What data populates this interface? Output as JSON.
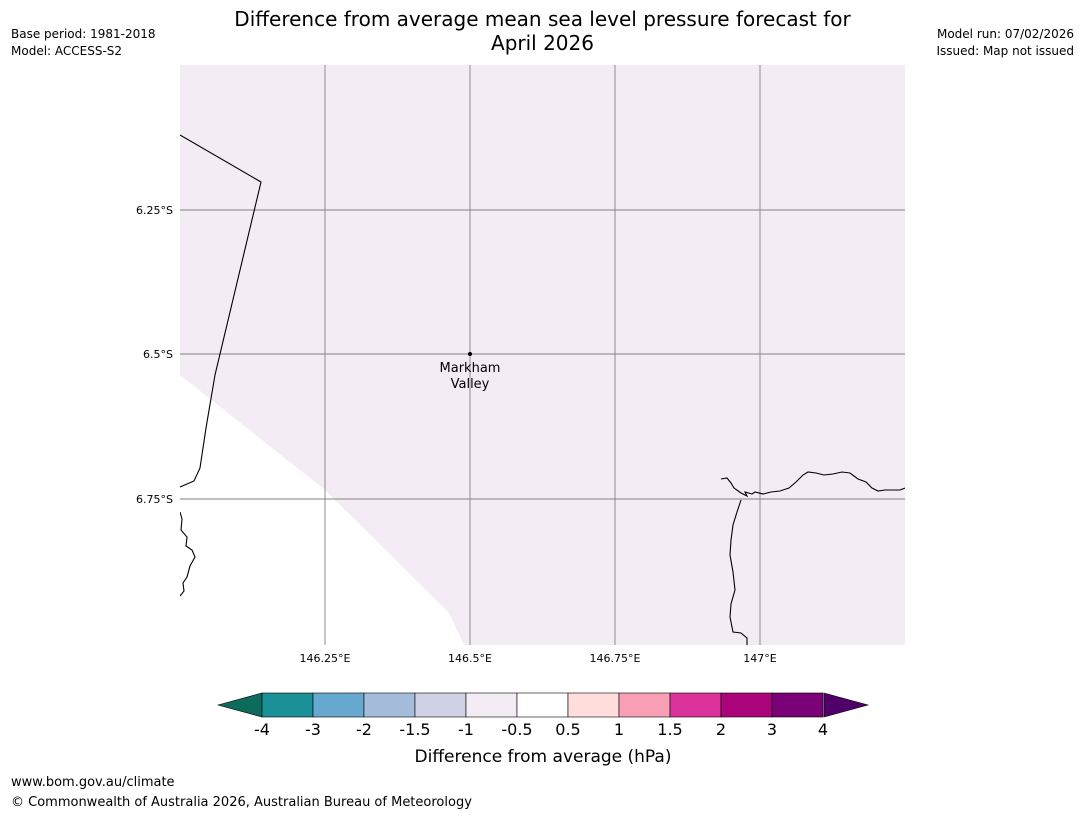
{
  "header": {
    "title_line1": "Difference from average mean sea level pressure forecast for",
    "title_line2": "April 2026",
    "base_period": "Base period: 1981-2018",
    "model": "Model: ACCESS-S2",
    "model_run": "Model run: 07/02/2026",
    "issued": "Issued: Map not issued"
  },
  "map": {
    "lat_labels": [
      "6.25°S",
      "6.5°S",
      "6.75°S"
    ],
    "lon_labels": [
      "146.25°E",
      "146.5°E",
      "146.75°E",
      "147°E"
    ],
    "place": {
      "name_line1": "Markham",
      "name_line2": "Valley",
      "lon": 146.5,
      "lat": -6.5
    },
    "field_color": "#f3ecf5",
    "grid_color": "#808080",
    "coast_color": "#000000"
  },
  "colorbar": {
    "title": "Difference from average (hPa)",
    "ticks": [
      "-4",
      "-3",
      "-2",
      "-1.5",
      "-1",
      "-0.5",
      "0.5",
      "1",
      "1.5",
      "2",
      "3",
      "4"
    ],
    "under_color": "#0d6b5c",
    "over_color": "#4f0069",
    "colors": [
      "#1b9096",
      "#67a8cf",
      "#a6bcdb",
      "#d1d1e5",
      "#f3ecf5",
      "#ffffff",
      "#fedddb",
      "#f99fb5",
      "#dc329b",
      "#ab0379",
      "#7a0177"
    ]
  },
  "footer": {
    "url": "www.bom.gov.au/climate",
    "copyright": "© Commonwealth of Australia 2026, Australian Bureau of Meteorology"
  }
}
